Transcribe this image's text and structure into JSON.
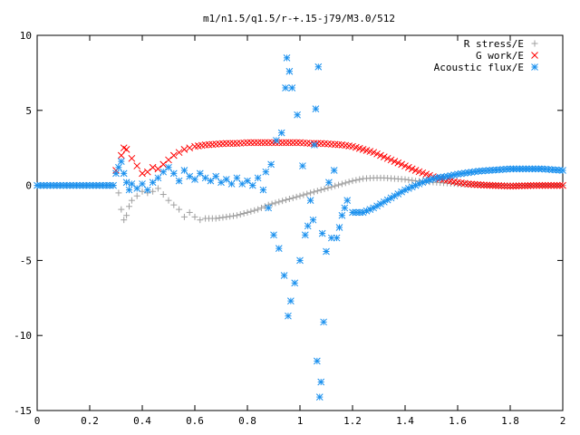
{
  "chart_data": {
    "type": "scatter",
    "title": "m1/n1.5/q1.5/r-+.15-j79/M3.0/512",
    "xlabel": "",
    "ylabel": "",
    "xlim": [
      0,
      2
    ],
    "ylim": [
      -15,
      10
    ],
    "xticks": [
      "0",
      "0.2",
      "0.4",
      "0.6",
      "0.8",
      "1",
      "1.2",
      "1.4",
      "1.6",
      "1.8",
      "2"
    ],
    "yticks": [
      "10",
      "5",
      "0",
      "-5",
      "-10",
      "-15"
    ],
    "grid": false,
    "legend_position": "top-right",
    "series": [
      {
        "name": "R stress/E",
        "marker": "plus",
        "color": "#a0a0a0",
        "points": [
          [
            0.0,
            0
          ],
          [
            0.05,
            0
          ],
          [
            0.1,
            0
          ],
          [
            0.15,
            0
          ],
          [
            0.2,
            0
          ],
          [
            0.25,
            0
          ],
          [
            0.29,
            0
          ],
          [
            0.31,
            -0.5
          ],
          [
            0.32,
            -1.6
          ],
          [
            0.33,
            -2.3
          ],
          [
            0.34,
            -2.0
          ],
          [
            0.35,
            -1.4
          ],
          [
            0.36,
            -1.0
          ],
          [
            0.38,
            -0.7
          ],
          [
            0.4,
            -0.4
          ],
          [
            0.42,
            -0.5
          ],
          [
            0.44,
            -0.4
          ],
          [
            0.46,
            -0.2
          ],
          [
            0.48,
            -0.6
          ],
          [
            0.5,
            -1.0
          ],
          [
            0.52,
            -1.3
          ],
          [
            0.54,
            -1.6
          ],
          [
            0.56,
            -2.1
          ],
          [
            0.58,
            -1.8
          ],
          [
            0.6,
            -2.1
          ],
          [
            0.62,
            -2.3
          ],
          [
            0.64,
            -2.2
          ],
          [
            0.68,
            -2.2
          ],
          [
            0.72,
            -2.1
          ],
          [
            0.76,
            -2.0
          ],
          [
            0.8,
            -1.8
          ],
          [
            0.84,
            -1.6
          ],
          [
            0.88,
            -1.3
          ],
          [
            0.92,
            -1.1
          ],
          [
            0.96,
            -0.9
          ],
          [
            1.0,
            -0.7
          ],
          [
            1.04,
            -0.5
          ],
          [
            1.08,
            -0.3
          ],
          [
            1.12,
            -0.1
          ],
          [
            1.16,
            0.1
          ],
          [
            1.2,
            0.3
          ],
          [
            1.24,
            0.45
          ],
          [
            1.28,
            0.5
          ],
          [
            1.32,
            0.5
          ],
          [
            1.36,
            0.45
          ],
          [
            1.4,
            0.4
          ],
          [
            1.44,
            0.3
          ],
          [
            1.48,
            0.25
          ],
          [
            1.52,
            0.2
          ],
          [
            1.56,
            0.15
          ],
          [
            1.6,
            0.1
          ],
          [
            1.65,
            0.05
          ],
          [
            1.7,
            0.02
          ],
          [
            1.8,
            0
          ],
          [
            1.9,
            0
          ],
          [
            2.0,
            0
          ]
        ]
      },
      {
        "name": "G work/E",
        "marker": "cross",
        "color": "#ff0000",
        "points": [
          [
            0.3,
            1.0
          ],
          [
            0.32,
            2.0
          ],
          [
            0.33,
            2.5
          ],
          [
            0.34,
            2.4
          ],
          [
            0.36,
            1.8
          ],
          [
            0.38,
            1.3
          ],
          [
            0.4,
            0.8
          ],
          [
            0.42,
            0.9
          ],
          [
            0.44,
            1.2
          ],
          [
            0.46,
            1.1
          ],
          [
            0.48,
            1.4
          ],
          [
            0.5,
            1.7
          ],
          [
            0.52,
            2.0
          ],
          [
            0.54,
            2.2
          ],
          [
            0.56,
            2.4
          ],
          [
            0.58,
            2.5
          ],
          [
            0.6,
            2.6
          ],
          [
            0.64,
            2.7
          ],
          [
            0.68,
            2.75
          ],
          [
            0.72,
            2.8
          ],
          [
            0.76,
            2.8
          ],
          [
            0.8,
            2.85
          ],
          [
            0.84,
            2.85
          ],
          [
            0.88,
            2.85
          ],
          [
            0.92,
            2.85
          ],
          [
            0.96,
            2.85
          ],
          [
            1.0,
            2.85
          ],
          [
            1.04,
            2.8
          ],
          [
            1.08,
            2.8
          ],
          [
            1.12,
            2.75
          ],
          [
            1.16,
            2.7
          ],
          [
            1.2,
            2.6
          ],
          [
            1.24,
            2.4
          ],
          [
            1.28,
            2.2
          ],
          [
            1.32,
            1.9
          ],
          [
            1.36,
            1.6
          ],
          [
            1.4,
            1.3
          ],
          [
            1.44,
            1.0
          ],
          [
            1.48,
            0.75
          ],
          [
            1.52,
            0.5
          ],
          [
            1.56,
            0.35
          ],
          [
            1.6,
            0.2
          ],
          [
            1.64,
            0.1
          ],
          [
            1.7,
            0.02
          ],
          [
            1.8,
            -0.05
          ],
          [
            1.9,
            0
          ],
          [
            2.0,
            0
          ]
        ]
      },
      {
        "name": "Acoustic flux/E",
        "marker": "star",
        "color": "#1a90ee",
        "points": [
          [
            0.0,
            0
          ],
          [
            0.05,
            0
          ],
          [
            0.1,
            0
          ],
          [
            0.15,
            0
          ],
          [
            0.2,
            0
          ],
          [
            0.25,
            0
          ],
          [
            0.29,
            0
          ],
          [
            0.3,
            0.8
          ],
          [
            0.31,
            1.2
          ],
          [
            0.32,
            1.6
          ],
          [
            0.33,
            0.8
          ],
          [
            0.34,
            0.2
          ],
          [
            0.35,
            -0.3
          ],
          [
            0.36,
            0.1
          ],
          [
            0.38,
            -0.2
          ],
          [
            0.4,
            0.1
          ],
          [
            0.42,
            -0.3
          ],
          [
            0.44,
            0.2
          ],
          [
            0.46,
            0.5
          ],
          [
            0.48,
            0.9
          ],
          [
            0.5,
            1.2
          ],
          [
            0.52,
            0.8
          ],
          [
            0.54,
            0.3
          ],
          [
            0.56,
            1.0
          ],
          [
            0.58,
            0.6
          ],
          [
            0.6,
            0.4
          ],
          [
            0.62,
            0.8
          ],
          [
            0.64,
            0.5
          ],
          [
            0.66,
            0.3
          ],
          [
            0.68,
            0.6
          ],
          [
            0.7,
            0.2
          ],
          [
            0.72,
            0.4
          ],
          [
            0.74,
            0.1
          ],
          [
            0.76,
            0.5
          ],
          [
            0.78,
            0.1
          ],
          [
            0.8,
            0.3
          ],
          [
            0.82,
            0.0
          ],
          [
            0.84,
            0.5
          ],
          [
            0.86,
            -0.3
          ],
          [
            0.87,
            0.9
          ],
          [
            0.88,
            -1.5
          ],
          [
            0.89,
            1.4
          ],
          [
            0.9,
            -3.3
          ],
          [
            0.91,
            3.0
          ],
          [
            0.92,
            -4.2
          ],
          [
            0.93,
            3.5
          ],
          [
            0.94,
            -6.0
          ],
          [
            0.945,
            6.5
          ],
          [
            0.95,
            8.5
          ],
          [
            0.955,
            -8.7
          ],
          [
            0.96,
            7.6
          ],
          [
            0.965,
            -7.7
          ],
          [
            0.97,
            6.5
          ],
          [
            0.98,
            -6.5
          ],
          [
            0.99,
            4.7
          ],
          [
            1.0,
            -5.0
          ],
          [
            1.01,
            1.3
          ],
          [
            1.02,
            -3.3
          ],
          [
            1.03,
            -2.7
          ],
          [
            1.04,
            -1.0
          ],
          [
            1.05,
            -2.3
          ],
          [
            1.055,
            2.7
          ],
          [
            1.06,
            5.1
          ],
          [
            1.065,
            -11.7
          ],
          [
            1.07,
            7.9
          ],
          [
            1.075,
            -14.1
          ],
          [
            1.08,
            -13.1
          ],
          [
            1.085,
            -3.2
          ],
          [
            1.09,
            -9.1
          ],
          [
            1.1,
            -4.4
          ],
          [
            1.11,
            0.2
          ],
          [
            1.12,
            -3.5
          ],
          [
            1.13,
            1.0
          ],
          [
            1.14,
            -3.5
          ],
          [
            1.15,
            -2.8
          ],
          [
            1.16,
            -2.0
          ],
          [
            1.17,
            -1.5
          ],
          [
            1.18,
            -1.0
          ],
          [
            1.2,
            -1.8
          ],
          [
            1.24,
            -1.8
          ],
          [
            1.28,
            -1.5
          ],
          [
            1.32,
            -1.1
          ],
          [
            1.36,
            -0.7
          ],
          [
            1.4,
            -0.3
          ],
          [
            1.44,
            0.0
          ],
          [
            1.48,
            0.3
          ],
          [
            1.52,
            0.5
          ],
          [
            1.56,
            0.6
          ],
          [
            1.6,
            0.75
          ],
          [
            1.64,
            0.85
          ],
          [
            1.68,
            0.95
          ],
          [
            1.72,
            1.0
          ],
          [
            1.76,
            1.05
          ],
          [
            1.8,
            1.1
          ],
          [
            1.86,
            1.1
          ],
          [
            1.92,
            1.1
          ],
          [
            1.96,
            1.05
          ],
          [
            2.0,
            1.0
          ]
        ]
      }
    ]
  }
}
